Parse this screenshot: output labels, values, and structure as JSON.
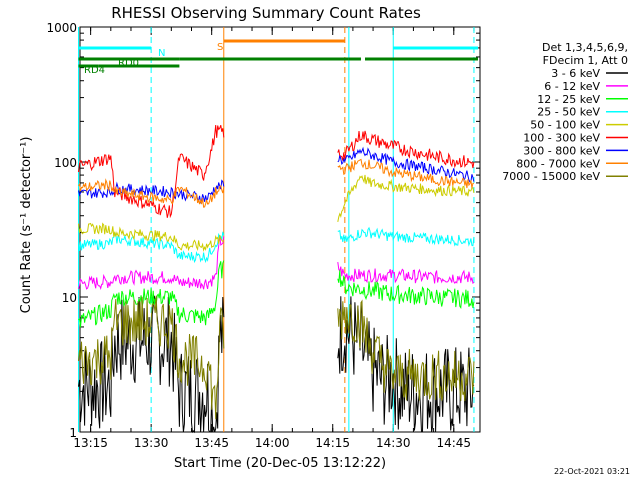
{
  "chart_data": {
    "type": "line",
    "title": "RHESSI Observing Summary Count Rates",
    "xlabel": "Start Time (20-Dec-05 13:12:22)",
    "ylabel": "Count Rate (s⁻¹ detector⁻¹)",
    "y_scale": "log",
    "ylim": [
      1,
      1000
    ],
    "xlim": [
      "13:12:22",
      "14:51:30"
    ],
    "x_ticks": [
      "13:15",
      "13:30",
      "13:45",
      "14:00",
      "14:15",
      "14:30",
      "14:45"
    ],
    "y_ticks": [
      "1",
      "10",
      "100",
      "1000"
    ],
    "legend": {
      "header": [
        "Det 1,3,4,5,6,9,",
        "FDecim 1, Att 0"
      ],
      "placement": "right"
    },
    "series": [
      {
        "name": "3 - 6 keV",
        "color": "#000000",
        "x": [
          "13:12",
          "13:20",
          "13:21",
          "13:35",
          "13:37",
          "13:44",
          "13:46",
          "13:47",
          "14:16",
          "14:18",
          "14:22",
          "14:24",
          "14:28",
          "14:30",
          "14:32",
          "14:40",
          "14:50"
        ],
        "y": [
          2.2,
          2.2,
          4.8,
          4.8,
          2.0,
          2.0,
          1.1,
          5.0,
          5.0,
          6.0,
          4.2,
          3.0,
          2.3,
          2.6,
          2.0,
          2.0,
          2.0
        ]
      },
      {
        "name": "6 - 12 keV",
        "color": "#ff00ff",
        "x": [
          "13:12",
          "13:20",
          "13:21",
          "13:35",
          "13:37",
          "13:44",
          "13:46",
          "13:47",
          "14:16",
          "14:18",
          "14:22",
          "14:30",
          "14:40",
          "14:50"
        ],
        "y": [
          12.5,
          13,
          14,
          14,
          12.8,
          12.8,
          14,
          26,
          17,
          14.5,
          14.5,
          14.5,
          14,
          14
        ]
      },
      {
        "name": "12 - 25 keV",
        "color": "#00ff00",
        "x": [
          "13:12",
          "13:20",
          "13:21",
          "13:35",
          "13:37",
          "13:44",
          "13:46",
          "13:47",
          "14:16",
          "14:18",
          "14:22",
          "14:30",
          "14:40",
          "14:50"
        ],
        "y": [
          6.5,
          8,
          10,
          10,
          7.5,
          7,
          9,
          16,
          16,
          12,
          11.5,
          10.5,
          10,
          9.7
        ]
      },
      {
        "name": "25 - 50 keV",
        "color": "#00ffff",
        "x": [
          "13:12",
          "13:20",
          "13:21",
          "13:35",
          "13:37",
          "13:44",
          "13:46",
          "13:47",
          "14:16",
          "14:18",
          "14:22",
          "14:24",
          "14:30",
          "14:40",
          "14:50"
        ],
        "y": [
          24,
          25,
          27,
          24,
          20,
          20,
          25,
          28,
          30,
          26,
          30,
          30,
          28,
          27,
          26
        ]
      },
      {
        "name": "50 - 100 keV",
        "color": "#cccc00",
        "x": [
          "13:12",
          "13:20",
          "13:21",
          "13:35",
          "13:37",
          "13:44",
          "13:46",
          "14:16",
          "14:18",
          "14:22",
          "14:24",
          "14:30",
          "14:40",
          "14:50"
        ],
        "y": [
          32,
          32,
          30,
          28,
          24,
          24,
          26,
          36,
          50,
          80,
          70,
          66,
          62,
          60
        ]
      },
      {
        "name": "100 - 300 keV",
        "color": "#ff0000",
        "x": [
          "13:12",
          "13:20",
          "13:21",
          "13:35",
          "13:37",
          "13:43",
          "13:45",
          "13:46",
          "14:16",
          "14:18",
          "14:22",
          "14:24",
          "14:30",
          "14:40",
          "14:50"
        ],
        "y": [
          92,
          108,
          60,
          42,
          108,
          80,
          125,
          170,
          118,
          112,
          160,
          150,
          130,
          110,
          98
        ]
      },
      {
        "name": "300 - 800 keV",
        "color": "#0000ff",
        "x": [
          "13:12",
          "13:20",
          "13:21",
          "13:35",
          "13:37",
          "13:44",
          "13:46",
          "14:16",
          "14:18",
          "14:22",
          "14:30",
          "14:40",
          "14:50"
        ],
        "y": [
          58,
          60,
          64,
          60,
          58,
          54,
          65,
          110,
          100,
          120,
          100,
          88,
          77
        ]
      },
      {
        "name": "800 - 7000 keV",
        "color": "#ff8000",
        "x": [
          "13:12",
          "13:20",
          "13:21",
          "13:35",
          "13:37",
          "13:44",
          "13:46",
          "14:16",
          "14:18",
          "14:22",
          "14:30",
          "14:40",
          "14:50"
        ],
        "y": [
          64,
          68,
          60,
          52,
          64,
          48,
          60,
          92,
          88,
          100,
          84,
          74,
          68
        ]
      },
      {
        "name": "7000 - 15000 keV",
        "color": "#808000",
        "x": [
          "13:12",
          "13:20",
          "13:21",
          "13:35",
          "13:37",
          "13:44",
          "13:46",
          "13:47",
          "14:16",
          "14:18",
          "14:22",
          "14:24",
          "14:28",
          "14:30",
          "14:40",
          "14:50"
        ],
        "y": [
          3.3,
          3.6,
          6.5,
          6.5,
          3.5,
          3.2,
          1.5,
          5.5,
          6,
          8,
          6.5,
          4.5,
          3.0,
          2.6,
          2.6,
          2.6
        ]
      }
    ],
    "flag_bars": [
      {
        "label": "RD0",
        "color": "#008000",
        "segments": [
          [
            "13:12",
            "13:37"
          ],
          [
            "13:37",
            "14:19"
          ],
          [
            "14:19",
            "14:22"
          ],
          [
            "14:23",
            "14:51"
          ]
        ],
        "level": "upper"
      },
      {
        "label": "RD4",
        "color": "#008000",
        "segments": [
          [
            "13:12",
            "13:17"
          ],
          [
            "13:17",
            "13:37"
          ]
        ],
        "level": "lower"
      },
      {
        "label": "N",
        "color": "#00ffff",
        "segments": [
          [
            "13:12",
            "13:30"
          ],
          [
            "14:30",
            "14:51"
          ]
        ],
        "level": "top"
      },
      {
        "label": "S",
        "color": "#ff8000",
        "segments": [
          [
            "13:48",
            "14:18"
          ]
        ],
        "level": "top2"
      }
    ],
    "vlines": [
      {
        "x": "13:12",
        "color": "#00ffff",
        "dash": false
      },
      {
        "x": "13:30",
        "color": "#00ffff",
        "dash": true
      },
      {
        "x": "13:48",
        "color": "#ff8000",
        "dash": false
      },
      {
        "x": "14:18",
        "color": "#ff8000",
        "dash": true
      },
      {
        "x": "14:19",
        "color": "#00ffff",
        "dash": false
      },
      {
        "x": "14:30",
        "color": "#00ffff",
        "dash": false
      },
      {
        "x": "14:50",
        "color": "#00ffff",
        "dash": true
      }
    ],
    "footer_date": "22-Oct-2021 03:21"
  }
}
